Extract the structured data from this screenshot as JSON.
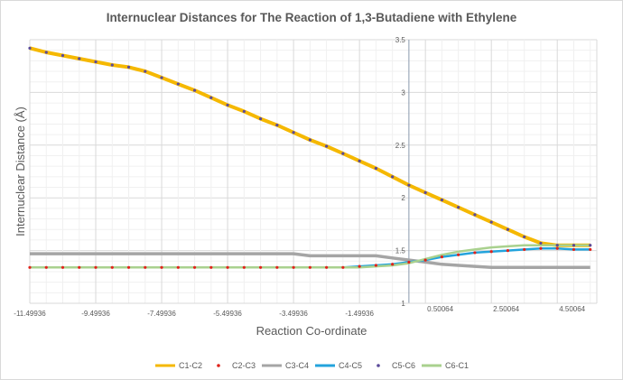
{
  "chart_data": {
    "type": "line",
    "title": "Internuclear Distances for The Reaction of 1,3-Butadiene with Ethylene",
    "xlabel": "Reaction Co-ordinate",
    "ylabel": "Internuclear Distance (Å)",
    "xlim": [
      -11.49936,
      5.7
    ],
    "ylim": [
      1,
      3.5
    ],
    "x_ticks": [
      "-11.49936",
      "-9.49936",
      "-7.49936",
      "-5.49936",
      "-3.49936",
      "-1.49936",
      "0.50064",
      "2.50064",
      "4.50064"
    ],
    "y_ticks": [
      "1",
      "1.5",
      "2",
      "2.5",
      "3",
      "3.5"
    ],
    "grid": true,
    "legend_position": "bottom",
    "x": [
      -11.49936,
      -10.99936,
      -10.49936,
      -9.99936,
      -9.49936,
      -8.99936,
      -8.49936,
      -7.99936,
      -7.49936,
      -6.99936,
      -6.49936,
      -5.99936,
      -5.49936,
      -4.99936,
      -4.49936,
      -3.99936,
      -3.49936,
      -2.99936,
      -2.49936,
      -1.99936,
      -1.49936,
      -0.99936,
      -0.49936,
      0.00064,
      0.50064,
      1.00064,
      1.50064,
      2.00064,
      2.50064,
      3.00064,
      3.50064,
      4.00064,
      4.50064,
      5.00064,
      5.50064
    ],
    "series": [
      {
        "name": "C1-C2",
        "color": "#f5b800",
        "style": "line",
        "values": [
          3.42,
          3.38,
          3.35,
          3.32,
          3.29,
          3.26,
          3.24,
          3.2,
          3.14,
          3.08,
          3.02,
          2.95,
          2.88,
          2.82,
          2.75,
          2.69,
          2.62,
          2.55,
          2.49,
          2.42,
          2.35,
          2.28,
          2.2,
          2.12,
          2.05,
          1.98,
          1.91,
          1.84,
          1.77,
          1.7,
          1.63,
          1.57,
          1.55,
          1.55,
          1.55
        ]
      },
      {
        "name": "C3-C4",
        "color": "#a5a5a5",
        "style": "line",
        "values": [
          1.47,
          1.47,
          1.47,
          1.47,
          1.47,
          1.47,
          1.47,
          1.47,
          1.47,
          1.47,
          1.47,
          1.47,
          1.47,
          1.47,
          1.47,
          1.47,
          1.47,
          1.45,
          1.45,
          1.45,
          1.45,
          1.45,
          1.43,
          1.41,
          1.39,
          1.37,
          1.36,
          1.35,
          1.34,
          1.34,
          1.34,
          1.34,
          1.34,
          1.34,
          1.34
        ]
      },
      {
        "name": "C4-C5",
        "color": "#23a3dc",
        "style": "line",
        "values": [
          1.34,
          1.34,
          1.34,
          1.34,
          1.34,
          1.34,
          1.34,
          1.34,
          1.34,
          1.34,
          1.34,
          1.34,
          1.34,
          1.34,
          1.34,
          1.34,
          1.34,
          1.34,
          1.34,
          1.34,
          1.35,
          1.36,
          1.37,
          1.39,
          1.41,
          1.44,
          1.46,
          1.48,
          1.49,
          1.5,
          1.51,
          1.52,
          1.52,
          1.51,
          1.51
        ]
      },
      {
        "name": "C6-C1",
        "color": "#a9d18e",
        "style": "line",
        "values": [
          1.34,
          1.34,
          1.34,
          1.34,
          1.34,
          1.34,
          1.34,
          1.34,
          1.34,
          1.34,
          1.34,
          1.34,
          1.34,
          1.34,
          1.34,
          1.34,
          1.34,
          1.34,
          1.34,
          1.34,
          1.34,
          1.35,
          1.36,
          1.38,
          1.42,
          1.46,
          1.49,
          1.51,
          1.53,
          1.54,
          1.55,
          1.55,
          1.55,
          1.55,
          1.55
        ]
      },
      {
        "name": "C2-C3",
        "color": "#e0231b",
        "style": "dots",
        "values": [
          1.34,
          1.34,
          1.34,
          1.34,
          1.34,
          1.34,
          1.34,
          1.34,
          1.34,
          1.34,
          1.34,
          1.34,
          1.34,
          1.34,
          1.34,
          1.34,
          1.34,
          1.34,
          1.34,
          1.34,
          1.35,
          1.36,
          1.37,
          1.39,
          1.41,
          1.44,
          1.46,
          1.48,
          1.49,
          1.5,
          1.51,
          1.52,
          1.52,
          1.51,
          1.51
        ]
      },
      {
        "name": "C5-C6",
        "color": "#5b4a9a",
        "style": "dots",
        "values": [
          3.42,
          3.38,
          3.35,
          3.32,
          3.29,
          3.26,
          3.24,
          3.2,
          3.14,
          3.08,
          3.02,
          2.95,
          2.88,
          2.82,
          2.75,
          2.69,
          2.62,
          2.55,
          2.49,
          2.42,
          2.35,
          2.28,
          2.2,
          2.12,
          2.05,
          1.98,
          1.91,
          1.84,
          1.77,
          1.7,
          1.63,
          1.57,
          1.55,
          1.55,
          1.55
        ]
      }
    ],
    "legend_order": [
      "C1-C2",
      "C2-C3",
      "C3-C4",
      "C4-C5",
      "C5-C6",
      "C6-C1"
    ]
  }
}
